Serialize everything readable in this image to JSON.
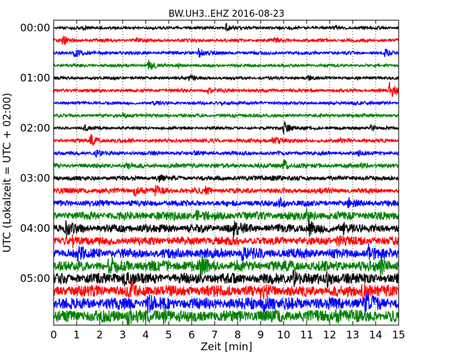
{
  "chart_data": {
    "type": "line",
    "title": "BW.UH3..EHZ 2016-08-23",
    "xlabel": "Zeit  [min]",
    "ylabel": "UTC (Lokalzeit = UTC + 02:00)",
    "xlim": [
      0,
      15
    ],
    "x_ticks": [
      "0",
      "1",
      "2",
      "3",
      "4",
      "5",
      "6",
      "7",
      "8",
      "9",
      "10",
      "11",
      "12",
      "13",
      "14",
      "15"
    ],
    "y_tick_labels": [
      "00:00",
      "01:00",
      "02:00",
      "03:00",
      "04:00",
      "05:00"
    ],
    "trace_interval_minutes": 15,
    "trace_count": 24,
    "trace_colors": [
      "#000000",
      "#ff0000",
      "#0000ff",
      "#008000"
    ],
    "grid": "vertical dotted lines at each minute",
    "traces": [
      {
        "start": "00:00",
        "amplitude": 0.2,
        "events": [
          [
            1.3,
            0.3
          ],
          [
            7.5,
            0.6
          ],
          [
            12.2,
            0.25
          ]
        ]
      },
      {
        "start": "00:15",
        "amplitude": 0.22,
        "events": [
          [
            0.4,
            0.7
          ],
          [
            3.6,
            0.25
          ],
          [
            9.6,
            0.3
          ]
        ]
      },
      {
        "start": "00:30",
        "amplitude": 0.22,
        "events": [
          [
            0.9,
            0.7
          ],
          [
            6.3,
            0.7
          ],
          [
            14.4,
            0.5
          ]
        ]
      },
      {
        "start": "00:45",
        "amplitude": 0.2,
        "events": [
          [
            4.1,
            1.0
          ],
          [
            5.4,
            0.25
          ]
        ]
      },
      {
        "start": "01:00",
        "amplitude": 0.2,
        "events": [
          [
            5.9,
            0.4
          ],
          [
            11.0,
            0.3
          ]
        ]
      },
      {
        "start": "01:15",
        "amplitude": 0.22,
        "events": [
          [
            6.7,
            0.4
          ],
          [
            14.6,
            1.4
          ]
        ]
      },
      {
        "start": "01:30",
        "amplitude": 0.2,
        "events": [
          [
            4.3,
            0.3
          ],
          [
            7.3,
            0.3
          ],
          [
            13.0,
            0.3
          ]
        ]
      },
      {
        "start": "01:45",
        "amplitude": 0.22,
        "events": [
          [
            3.0,
            0.4
          ],
          [
            8.7,
            0.3
          ]
        ]
      },
      {
        "start": "02:00",
        "amplitude": 0.2,
        "events": [
          [
            1.3,
            0.4
          ],
          [
            10.0,
            1.2
          ],
          [
            13.8,
            0.5
          ]
        ]
      },
      {
        "start": "02:15",
        "amplitude": 0.25,
        "events": [
          [
            1.6,
            0.9
          ],
          [
            9.5,
            0.8
          ],
          [
            12.5,
            0.3
          ]
        ]
      },
      {
        "start": "02:30",
        "amplitude": 0.25,
        "events": [
          [
            1.8,
            0.5
          ],
          [
            6.1,
            0.3
          ],
          [
            13.2,
            0.3
          ]
        ]
      },
      {
        "start": "02:45",
        "amplitude": 0.3,
        "events": [
          [
            3.1,
            0.4
          ],
          [
            10.0,
            0.9
          ],
          [
            13.4,
            0.5
          ]
        ]
      },
      {
        "start": "03:00",
        "amplitude": 0.3,
        "events": [
          [
            4.6,
            0.4
          ],
          [
            9.5,
            0.5
          ]
        ]
      },
      {
        "start": "03:15",
        "amplitude": 0.35,
        "events": [
          [
            3.5,
            0.7
          ],
          [
            4.4,
            0.7
          ],
          [
            6.6,
            0.5
          ]
        ]
      },
      {
        "start": "03:30",
        "amplitude": 0.4,
        "events": [
          [
            9.8,
            0.8
          ],
          [
            12.8,
            0.5
          ]
        ]
      },
      {
        "start": "03:45",
        "amplitude": 0.55,
        "events": [
          [
            6.2,
            0.6
          ],
          [
            11.0,
            0.7
          ]
        ]
      },
      {
        "start": "04:00",
        "amplitude": 0.55,
        "events": [
          [
            0.5,
            1.1
          ],
          [
            7.8,
            1.0
          ],
          [
            11.1,
            1.2
          ],
          [
            12.6,
            0.8
          ]
        ]
      },
      {
        "start": "04:15",
        "amplitude": 0.55,
        "events": [
          [
            0.8,
            1.0
          ],
          [
            12.3,
            0.9
          ]
        ]
      },
      {
        "start": "04:30",
        "amplitude": 0.65,
        "events": [
          [
            1.0,
            0.9
          ],
          [
            8.2,
            1.2
          ],
          [
            13.7,
            1.1
          ]
        ]
      },
      {
        "start": "04:45",
        "amplitude": 0.7,
        "events": [
          [
            2.4,
            0.9
          ],
          [
            6.4,
            1.2
          ],
          [
            14.2,
            1.0
          ]
        ]
      },
      {
        "start": "05:00",
        "amplitude": 0.7,
        "events": [
          [
            3.0,
            1.0
          ],
          [
            10.4,
            1.1
          ],
          [
            11.9,
            0.8
          ]
        ]
      },
      {
        "start": "05:15",
        "amplitude": 0.75,
        "events": [
          [
            3.3,
            1.0
          ],
          [
            9.0,
            1.1
          ],
          [
            13.4,
            1.4
          ]
        ]
      },
      {
        "start": "05:30",
        "amplitude": 0.8,
        "events": [
          [
            4.1,
            0.9
          ],
          [
            9.1,
            1.2
          ],
          [
            13.5,
            1.5
          ]
        ]
      },
      {
        "start": "05:45",
        "amplitude": 0.8,
        "events": [
          [
            3.2,
            1.1
          ],
          [
            4.8,
            1.1
          ],
          [
            12.3,
            1.0
          ]
        ]
      }
    ]
  }
}
